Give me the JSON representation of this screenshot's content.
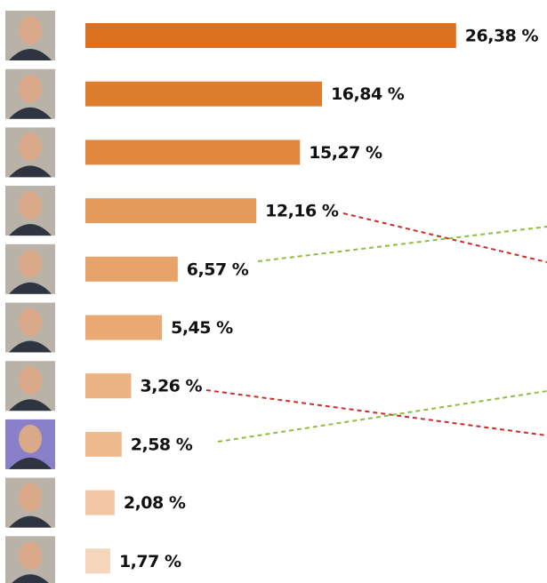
{
  "chart_data": {
    "type": "bar",
    "orientation": "horizontal",
    "categories": [
      null,
      null,
      null,
      null,
      null,
      null,
      null,
      null,
      null,
      null
    ],
    "values": [
      26.38,
      16.84,
      15.27,
      12.16,
      6.57,
      5.45,
      3.26,
      2.58,
      2.08,
      1.77
    ],
    "value_labels": [
      "26,38 %",
      "16,84 %",
      "15,27 %",
      "12,16 %",
      "6,57 %",
      "5,45 %",
      "3,26 %",
      "2,58 %",
      "2,08 %",
      "1,77 %"
    ],
    "colors": [
      "#dc7120",
      "#df7d2f",
      "#e0883d",
      "#e49a5b",
      "#e6a468",
      "#e8aa72",
      "#ebb381",
      "#edbb8e",
      "#f0c7a2",
      "#f4d6bb"
    ]
  }
}
